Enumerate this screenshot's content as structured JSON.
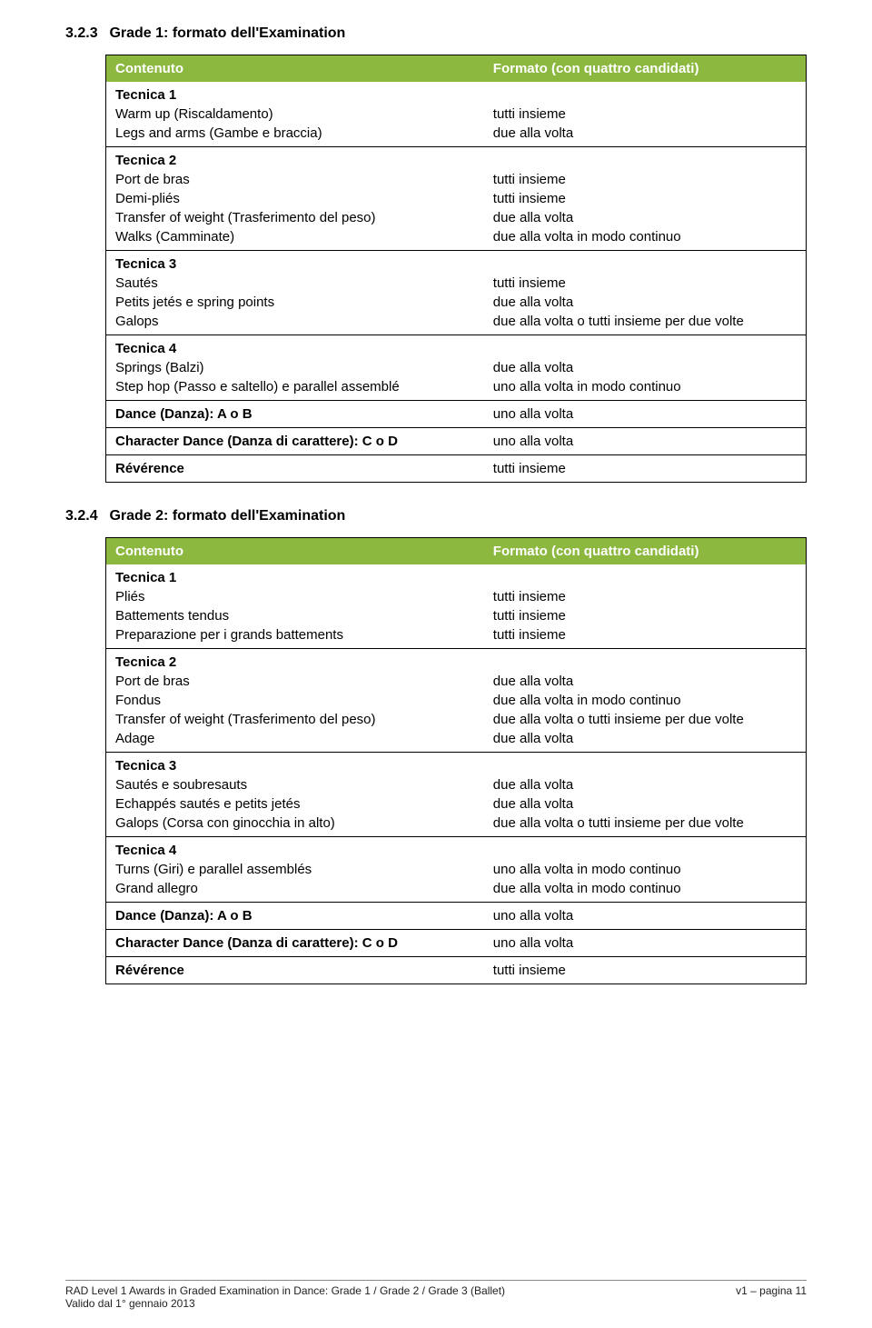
{
  "colors": {
    "header_bg": "#8cb83f",
    "header_text": "#ffffff",
    "border": "#000000"
  },
  "section1": {
    "num": "3.2.3",
    "title": "Grade 1: formato dell'Examination",
    "col1": "Contenuto",
    "col2": "Formato (con quattro candidati)",
    "groups": [
      {
        "subhead": "Tecnica 1",
        "rows": [
          {
            "l": "Warm up (Riscaldamento)",
            "r": "tutti insieme"
          },
          {
            "l": "Legs and arms (Gambe e braccia)",
            "r": "due alla volta"
          }
        ]
      },
      {
        "subhead": "Tecnica 2",
        "rows": [
          {
            "l": "Port de bras",
            "r": "tutti insieme"
          },
          {
            "l": "Demi-pliés",
            "r": "tutti insieme"
          },
          {
            "l": "Transfer of weight (Trasferimento del peso)",
            "r": "due alla volta"
          },
          {
            "l": "Walks (Camminate)",
            "r": "due alla volta in modo continuo"
          }
        ]
      },
      {
        "subhead": "Tecnica 3",
        "rows": [
          {
            "l": "Sautés",
            "r": "tutti insieme"
          },
          {
            "l": "Petits jetés e spring points",
            "r": "due alla volta"
          },
          {
            "l": "Galops",
            "r": "due alla volta o tutti insieme per due volte"
          }
        ]
      },
      {
        "subhead": "Tecnica 4",
        "rows": [
          {
            "l": "Springs (Balzi)",
            "r": "due alla volta"
          },
          {
            "l": "Step hop (Passo e saltello) e parallel assemblé",
            "r": "uno alla volta in modo continuo"
          }
        ]
      },
      {
        "subhead": null,
        "bold": true,
        "rows": [
          {
            "l": "Dance (Danza): A o B",
            "r": "uno alla volta"
          }
        ]
      },
      {
        "subhead": null,
        "bold": true,
        "rows": [
          {
            "l": "Character Dance (Danza di carattere): C o D",
            "r": "uno alla volta"
          }
        ]
      },
      {
        "subhead": null,
        "bold": true,
        "rows": [
          {
            "l": "Révérence",
            "r": "tutti insieme"
          }
        ]
      }
    ]
  },
  "section2": {
    "num": "3.2.4",
    "title": "Grade 2: formato dell'Examination",
    "col1": "Contenuto",
    "col2": "Formato (con quattro candidati)",
    "groups": [
      {
        "subhead": "Tecnica 1",
        "rows": [
          {
            "l": "Pliés",
            "r": "tutti insieme"
          },
          {
            "l": "Battements tendus",
            "r": "tutti insieme"
          },
          {
            "l": "Preparazione per i grands battements",
            "r": "tutti insieme"
          }
        ]
      },
      {
        "subhead": "Tecnica 2",
        "rows": [
          {
            "l": "Port de bras",
            "r": "due alla volta"
          },
          {
            "l": "Fondus",
            "r": "due alla volta in modo continuo"
          },
          {
            "l": "Transfer of weight (Trasferimento del peso)",
            "r": "due alla volta o tutti insieme per due volte"
          },
          {
            "l": "Adage",
            "r": "due alla volta"
          }
        ]
      },
      {
        "subhead": "Tecnica 3",
        "rows": [
          {
            "l": "Sautés e soubresauts",
            "r": "due alla volta"
          },
          {
            "l": "Echappés sautés e petits jetés",
            "r": "due alla volta"
          },
          {
            "l": "Galops (Corsa con ginocchia in alto)",
            "r": "due alla volta o tutti insieme per due volte"
          }
        ]
      },
      {
        "subhead": "Tecnica 4",
        "rows": [
          {
            "l": "Turns (Giri) e parallel assemblés",
            "r": "uno alla volta in modo continuo"
          },
          {
            "l": "Grand allegro",
            "r": "due alla volta in modo continuo"
          }
        ]
      },
      {
        "subhead": null,
        "bold": true,
        "rows": [
          {
            "l": "Dance (Danza): A o B",
            "r": "uno alla volta"
          }
        ]
      },
      {
        "subhead": null,
        "bold": true,
        "rows": [
          {
            "l": "Character Dance (Danza di carattere): C o D",
            "r": "uno alla volta"
          }
        ]
      },
      {
        "subhead": null,
        "bold": true,
        "rows": [
          {
            "l": "Révérence",
            "r": "tutti insieme"
          }
        ]
      }
    ]
  },
  "footer": {
    "left1": "RAD Level 1 Awards in Graded Examination in Dance: Grade 1 / Grade 2 / Grade 3 (Ballet)",
    "left2": "Valido dal 1° gennaio 2013",
    "right": "v1 – pagina 11"
  }
}
